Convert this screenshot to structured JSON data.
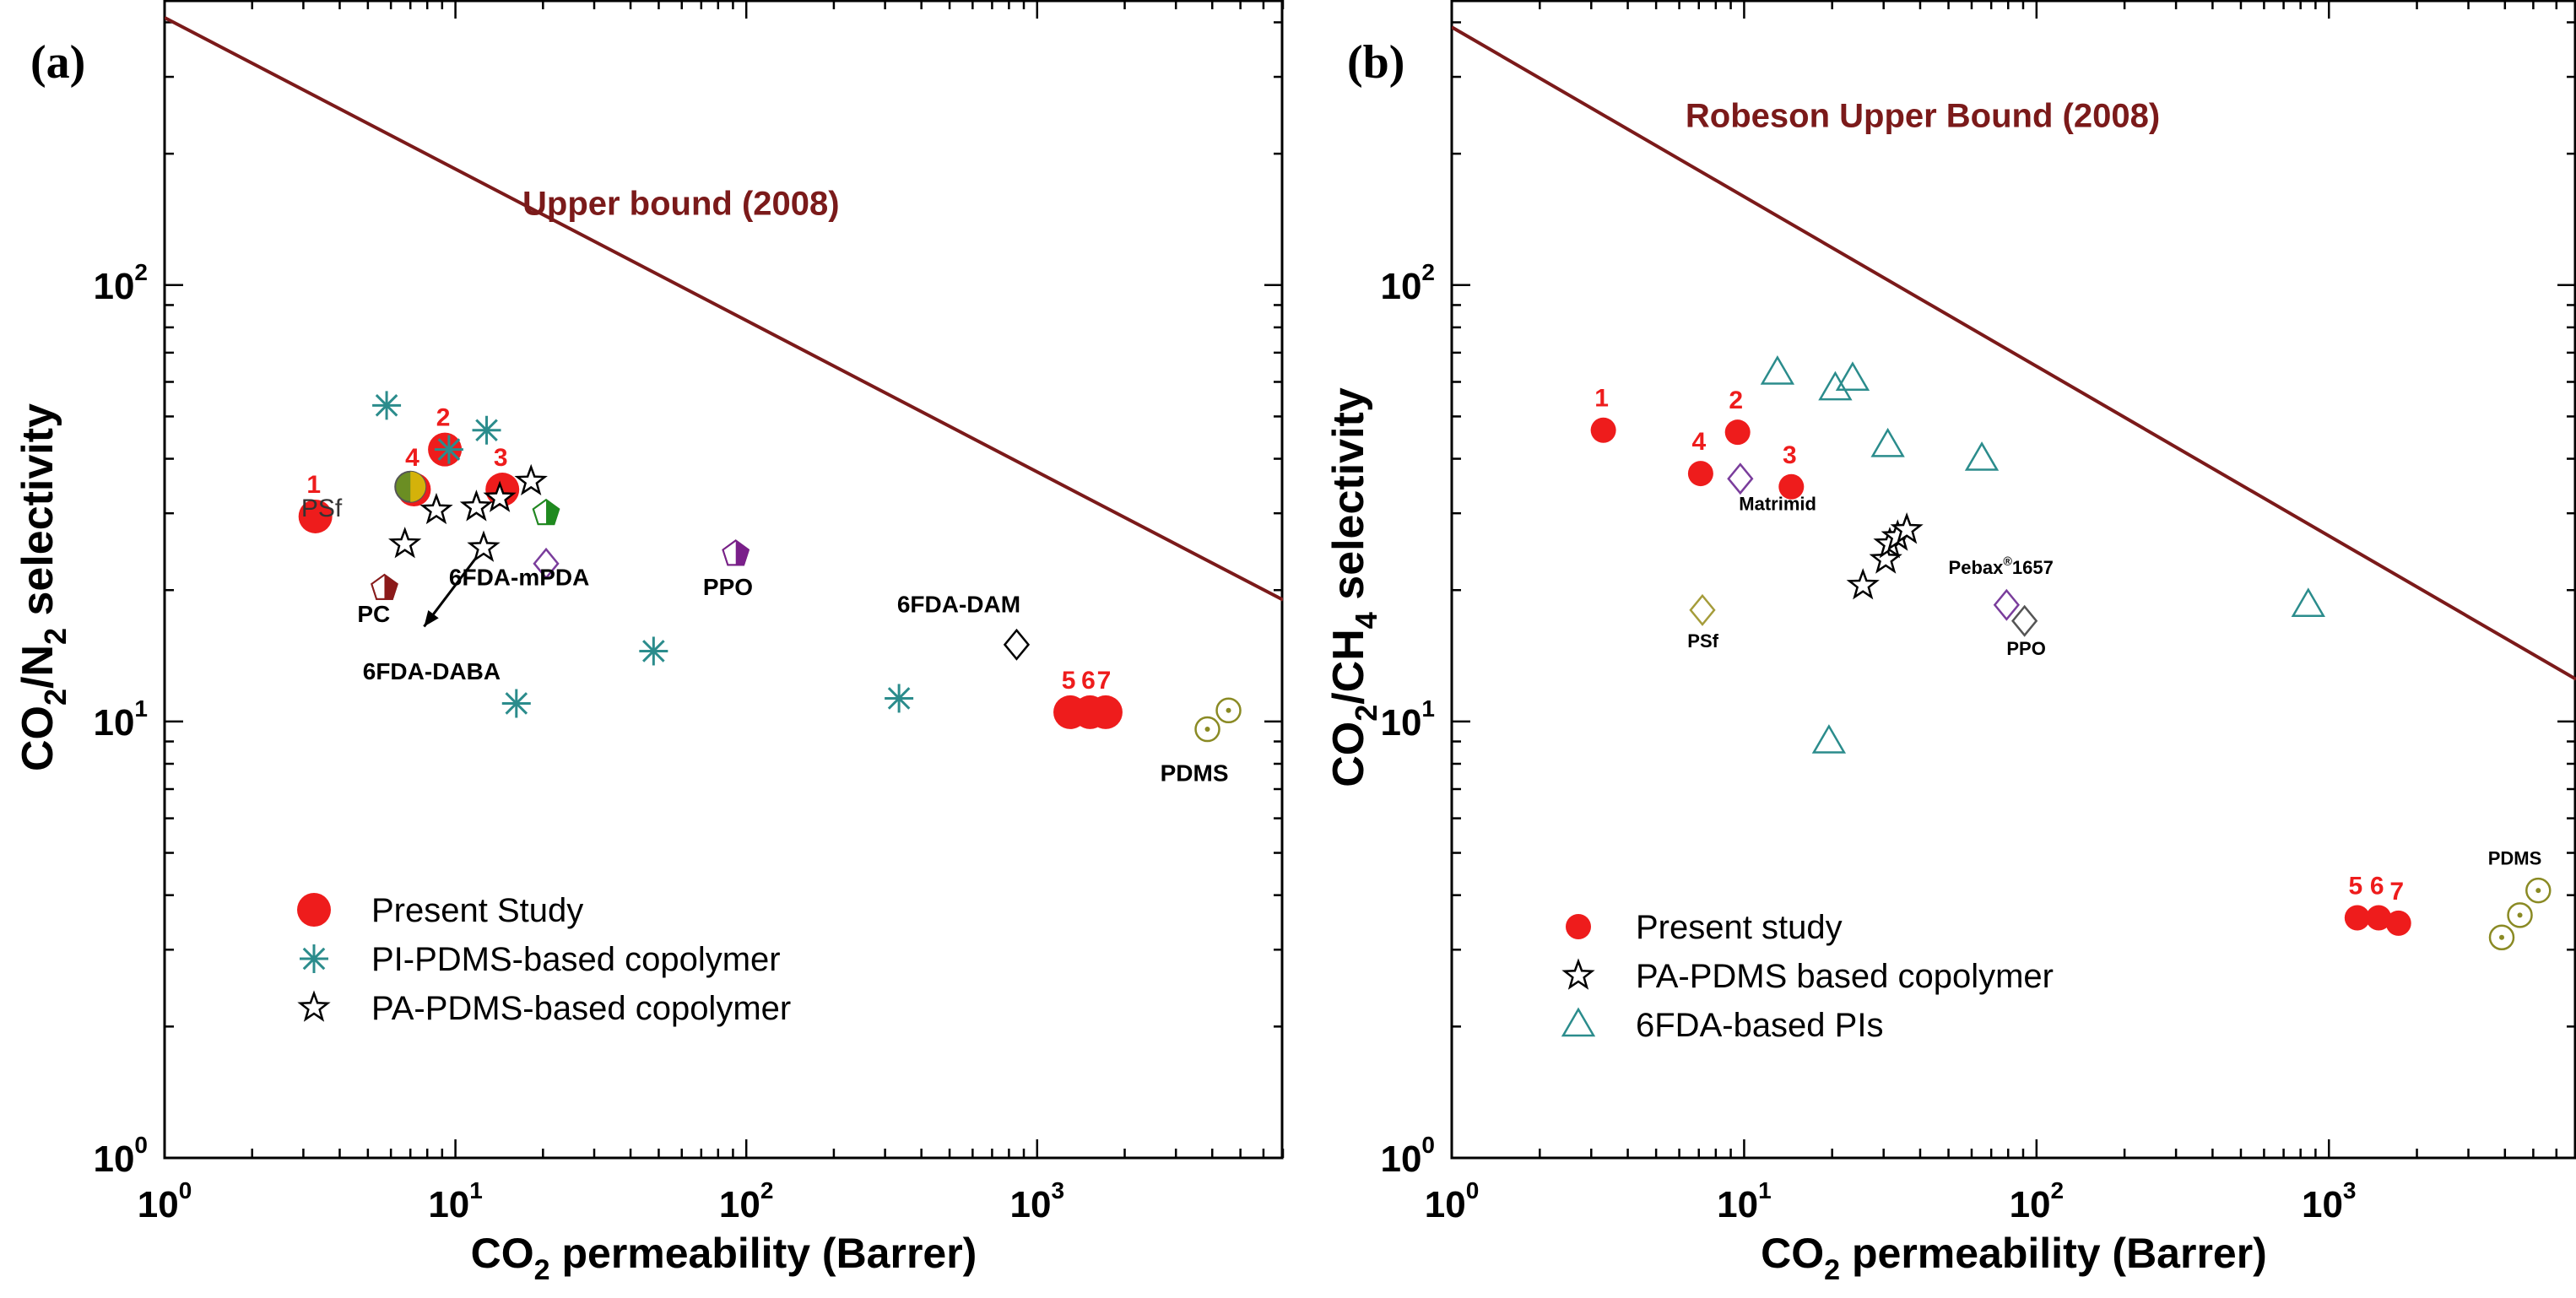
{
  "chart_data": [
    {
      "type": "scatter",
      "panel_label": "(a)",
      "x_scale": "log",
      "y_scale": "log",
      "xlim": [
        1,
        7000
      ],
      "ylim": [
        1,
        450
      ],
      "x_ticks": [
        1,
        10,
        100,
        1000
      ],
      "x_tick_labels": [
        [
          "10",
          "0"
        ],
        [
          "10",
          "1"
        ],
        [
          "10",
          "2"
        ],
        [
          "10",
          "3"
        ]
      ],
      "y_ticks": [
        1,
        10,
        100
      ],
      "y_tick_labels": [
        [
          "10",
          "0"
        ],
        [
          "10",
          "1"
        ],
        [
          "10",
          "2"
        ]
      ],
      "xlabel": [
        "CO",
        "2",
        " permeability (Barrer)"
      ],
      "ylabel": [
        "CO",
        "2",
        "/N",
        "2",
        " selectivity"
      ],
      "upper_bound": {
        "label": "Upper bound (2008)",
        "label_at": [
          17,
          145
        ],
        "x": [
          1,
          7000
        ],
        "y": [
          410,
          19
        ]
      },
      "legend": {
        "placement": "bottom-left",
        "entries": [
          {
            "label": "Present Study",
            "marker": "filled-circle",
            "color": "#ee1c1c"
          },
          {
            "label": "PI-PDMS-based copolymer",
            "marker": "asterisk",
            "color": "#2b8c8c"
          },
          {
            "label": "PA-PDMS-based copolymer",
            "marker": "open-star",
            "color": "#000000"
          }
        ]
      },
      "series": [
        {
          "name": "Present Study",
          "marker": "filled-circle",
          "color": "#ee1c1c",
          "points": [
            {
              "x": 3.3,
              "y": 29.5,
              "label": "1"
            },
            {
              "x": 9.2,
              "y": 42,
              "label": "2"
            },
            {
              "x": 14.5,
              "y": 34,
              "label": "3"
            },
            {
              "x": 7.2,
              "y": 34,
              "label": "4"
            },
            {
              "x": 1300,
              "y": 10.5,
              "label": "5"
            },
            {
              "x": 1520,
              "y": 10.5,
              "label": "6"
            },
            {
              "x": 1720,
              "y": 10.5,
              "label": "7"
            }
          ]
        },
        {
          "name": "PI-PDMS-based copolymer",
          "marker": "asterisk",
          "color": "#2b8c8c",
          "points": [
            {
              "x": 5.8,
              "y": 53
            },
            {
              "x": 12.8,
              "y": 46.5
            },
            {
              "x": 9.5,
              "y": 42
            },
            {
              "x": 16.2,
              "y": 11
            },
            {
              "x": 48,
              "y": 14.5
            },
            {
              "x": 335,
              "y": 11.3
            }
          ]
        },
        {
          "name": "PA-PDMS-based copolymer",
          "marker": "open-star",
          "color": "#000000",
          "points": [
            {
              "x": 6.7,
              "y": 25.5
            },
            {
              "x": 8.6,
              "y": 30.5
            },
            {
              "x": 11.8,
              "y": 31
            },
            {
              "x": 14.2,
              "y": 32.5
            },
            {
              "x": 18.2,
              "y": 35.5
            },
            {
              "x": 12.5,
              "y": 25
            }
          ]
        },
        {
          "name": "PSf",
          "marker": "half-circle",
          "color": "#8a8a24",
          "points": [
            {
              "x": 7.0,
              "y": 34.5
            }
          ]
        },
        {
          "name": "PC",
          "marker": "half-pentagon",
          "color": "#8b1a1a",
          "points": [
            {
              "x": 5.7,
              "y": 20.2
            }
          ]
        },
        {
          "name": "green pentagon",
          "marker": "half-pentagon",
          "color": "#1f8a1f",
          "points": [
            {
              "x": 20.5,
              "y": 30
            }
          ]
        },
        {
          "name": "PPO",
          "marker": "half-pentagon",
          "color": "#7a1f8a",
          "points": [
            {
              "x": 92,
              "y": 24.2
            }
          ]
        },
        {
          "name": "6FDA-mPDA",
          "marker": "open-diamond",
          "color": "#7a3d9c",
          "points": [
            {
              "x": 20.5,
              "y": 23
            }
          ]
        },
        {
          "name": "6FDA-DAM",
          "marker": "open-diamond",
          "color": "#000000",
          "points": [
            {
              "x": 850,
              "y": 15
            }
          ]
        },
        {
          "name": "PDMS",
          "marker": "open-circle-dot",
          "color": "#8a8a24",
          "points": [
            {
              "x": 3850,
              "y": 9.6
            },
            {
              "x": 4550,
              "y": 10.6
            }
          ]
        }
      ],
      "annotations": [
        {
          "text": "PSf",
          "x": 2.95,
          "y": 29.5,
          "color": "#333333",
          "weight": "normal",
          "size": 30
        },
        {
          "text": "PC",
          "x": 4.6,
          "y": 16.9,
          "color": "#000000",
          "weight": "bold",
          "size": 28
        },
        {
          "text": "6FDA-mPDA",
          "x": 9.5,
          "y": 20.5,
          "color": "#000000",
          "weight": "bold",
          "size": 28
        },
        {
          "text": "6FDA-DABA",
          "x": 4.8,
          "y": 12.5,
          "color": "#000000",
          "weight": "bold",
          "size": 28
        },
        {
          "text": "PPO",
          "x": 71,
          "y": 19.5,
          "color": "#000000",
          "weight": "bold",
          "size": 28
        },
        {
          "text": "6FDA-DAM",
          "x": 330,
          "y": 17.8,
          "color": "#000000",
          "weight": "bold",
          "size": 28
        },
        {
          "text": "PDMS",
          "x": 2650,
          "y": 7.3,
          "color": "#000000",
          "weight": "bold",
          "size": 28
        }
      ],
      "arrow": {
        "from": [
          12.5,
          25
        ],
        "to": [
          7.8,
          16.5
        ]
      }
    },
    {
      "type": "scatter",
      "panel_label": "(b)",
      "x_scale": "log",
      "y_scale": "log",
      "xlim": [
        1,
        7000
      ],
      "ylim": [
        1,
        450
      ],
      "x_ticks": [
        1,
        10,
        100,
        1000
      ],
      "x_tick_labels": [
        [
          "10",
          "0"
        ],
        [
          "10",
          "1"
        ],
        [
          "10",
          "2"
        ],
        [
          "10",
          "3"
        ]
      ],
      "y_ticks": [
        1,
        10,
        100
      ],
      "y_tick_labels": [
        [
          "10",
          "0"
        ],
        [
          "10",
          "1"
        ],
        [
          "10",
          "2"
        ]
      ],
      "xlabel": [
        "CO",
        "2",
        " permeability (Barrer)"
      ],
      "ylabel": [
        "CO",
        "2",
        "/CH",
        "4",
        "  selectivity"
      ],
      "upper_bound": {
        "label": "Robeson Upper Bound (2008)",
        "label_at": [
          6.3,
          230
        ],
        "x": [
          1,
          7000
        ],
        "y": [
          390,
          12.5
        ]
      },
      "legend": {
        "placement": "bottom-left",
        "entries": [
          {
            "label": "Present study",
            "marker": "filled-circle",
            "color": "#ee1c1c"
          },
          {
            "label": "PA-PDMS based copolymer",
            "marker": "open-star",
            "color": "#000000"
          },
          {
            "label": "6FDA-based PIs",
            "marker": "open-triangle",
            "color": "#2b8c8c"
          }
        ]
      },
      "series": [
        {
          "name": "Present study",
          "marker": "filled-circle",
          "color": "#ee1c1c",
          "points": [
            {
              "x": 3.3,
              "y": 46.5,
              "label": "1"
            },
            {
              "x": 9.5,
              "y": 46,
              "label": "2"
            },
            {
              "x": 14.5,
              "y": 34.5,
              "label": "3"
            },
            {
              "x": 7.1,
              "y": 37,
              "label": "4"
            },
            {
              "x": 1250,
              "y": 3.55,
              "label": "5"
            },
            {
              "x": 1480,
              "y": 3.55,
              "label": "6"
            },
            {
              "x": 1730,
              "y": 3.45,
              "label": "7"
            }
          ]
        },
        {
          "name": "PA-PDMS based copolymer",
          "marker": "open-star",
          "color": "#000000",
          "points": [
            {
              "x": 25.5,
              "y": 20.5
            },
            {
              "x": 30.5,
              "y": 23.5
            },
            {
              "x": 31.5,
              "y": 25.5
            },
            {
              "x": 33.5,
              "y": 26.5
            },
            {
              "x": 36,
              "y": 27.5
            }
          ]
        },
        {
          "name": "6FDA-based PIs",
          "marker": "open-triangle",
          "color": "#2b8c8c",
          "points": [
            {
              "x": 13,
              "y": 63
            },
            {
              "x": 23.5,
              "y": 61
            },
            {
              "x": 20.5,
              "y": 58
            },
            {
              "x": 31,
              "y": 43
            },
            {
              "x": 65,
              "y": 40
            },
            {
              "x": 850,
              "y": 18.5
            },
            {
              "x": 19.5,
              "y": 9
            }
          ]
        },
        {
          "name": "Matrimid",
          "marker": "open-diamond",
          "color": "#7a3d9c",
          "points": [
            {
              "x": 9.7,
              "y": 36
            }
          ]
        },
        {
          "name": "PSf",
          "marker": "open-diamond",
          "color": "#a59c3a",
          "points": [
            {
              "x": 7.2,
              "y": 18
            }
          ]
        },
        {
          "name": "Pebax/PPO",
          "marker": "open-diamond",
          "color": "#7a3d9c",
          "points": [
            {
              "x": 79,
              "y": 18.5
            }
          ]
        },
        {
          "name": "PPO",
          "marker": "open-diamond",
          "color": "#555555",
          "points": [
            {
              "x": 91,
              "y": 17
            }
          ]
        },
        {
          "name": "PDMS",
          "marker": "open-circle-dot",
          "color": "#8a8a24",
          "points": [
            {
              "x": 3900,
              "y": 3.2
            },
            {
              "x": 4500,
              "y": 3.6
            },
            {
              "x": 5200,
              "y": 4.1
            }
          ]
        }
      ],
      "annotations": [
        {
          "text": "Matrimid",
          "x": 9.6,
          "y": 30.5,
          "color": "#000000",
          "weight": "bold",
          "size": 22
        },
        {
          "text": "PSf",
          "x": 6.4,
          "y": 14.8,
          "color": "#000000",
          "weight": "bold",
          "size": 22
        },
        {
          "text": "Pebax",
          "sup": "®",
          "after": "1657",
          "x": 50,
          "y": 21.8,
          "color": "#000000",
          "weight": "bold",
          "size": 22
        },
        {
          "text": "PPO",
          "x": 79,
          "y": 14.2,
          "color": "#000000",
          "weight": "bold",
          "size": 22
        },
        {
          "text": "PDMS",
          "x": 3500,
          "y": 4.7,
          "color": "#000000",
          "weight": "bold",
          "size": 22
        }
      ]
    }
  ]
}
